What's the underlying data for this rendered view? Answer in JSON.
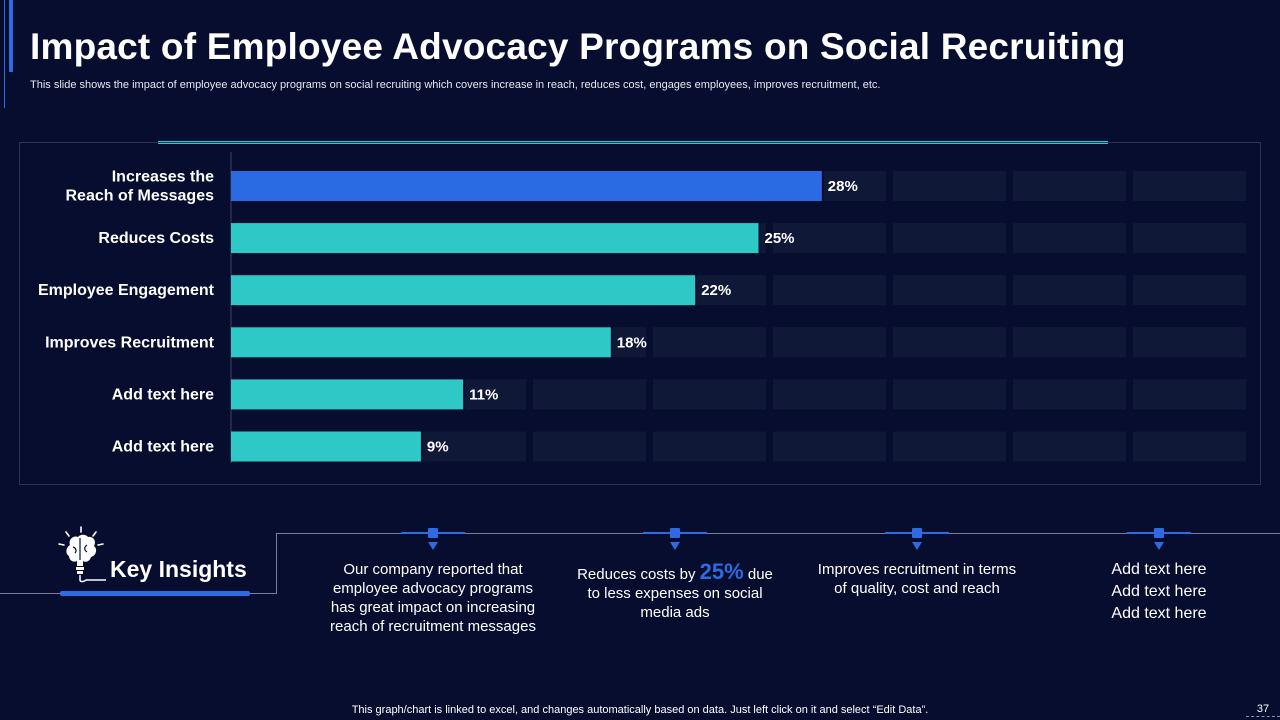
{
  "slide": {
    "title": "Impact of Employee Advocacy Programs on Social Recruiting",
    "subtitle": "This slide shows the impact of employee advocacy programs on social recruiting which covers increase in reach, reduces cost, engages employees, improves recruitment, etc.",
    "footer": "This graph/chart is linked to excel,  and changes automatically based on data. Just left click on it and select “Edit Data”.",
    "page_number": "37"
  },
  "chart_data": {
    "type": "bar",
    "orientation": "horizontal",
    "categories": [
      "Increases the\nReach of Messages",
      "Reduces Costs",
      "Employee Engagement",
      "Improves Recruitment",
      "Add text here",
      "Add text here"
    ],
    "values": [
      28,
      25,
      22,
      18,
      11,
      9
    ],
    "data_labels": [
      "28%",
      "25%",
      "22%",
      "18%",
      "11%",
      "9%"
    ],
    "unit": "%",
    "xlim": [
      0,
      48
    ],
    "highlight_index": 0,
    "colors": {
      "highlight": "#2a6ae3",
      "bar": "#2ec8c6",
      "track": "#101838"
    },
    "grid": false,
    "legend": "none"
  },
  "key_insights": {
    "title": "Key Insights",
    "items": [
      {
        "text": "Our company reported that employee advocacy programs has great impact on increasing reach of recruitment messages"
      },
      {
        "before": "Reduces costs by ",
        "highlight": "25%",
        "after": " due to less expenses on social media ads"
      },
      {
        "text": "Improves recruitment in terms of quality, cost and reach"
      },
      {
        "text": "Add text here\nAdd text here\nAdd text here"
      }
    ]
  },
  "colors": {
    "background": "#070d2e",
    "accent": "#2f6ae0",
    "teal": "#35c7d6"
  },
  "icons": {
    "key_insights": "brain-lightbulb-icon",
    "insight_marker": "pin-marker-icon"
  }
}
